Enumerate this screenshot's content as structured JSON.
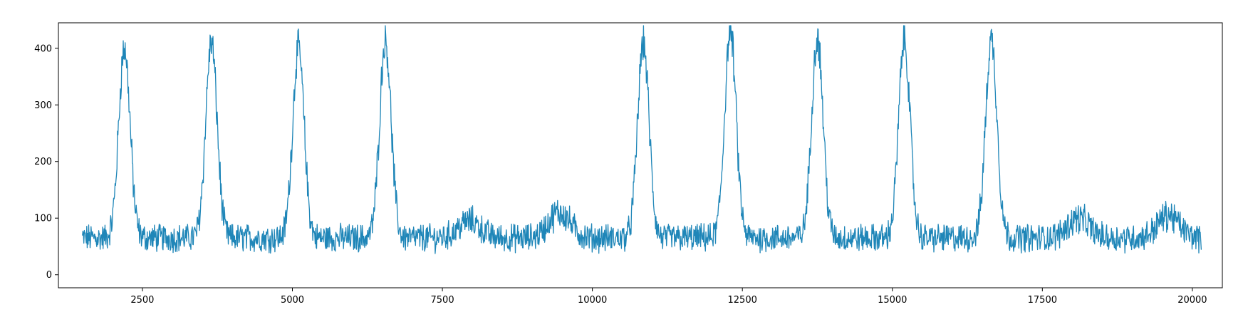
{
  "chart_data": {
    "type": "line",
    "title": "",
    "xlabel": "",
    "ylabel": "",
    "xlim": [
      1100,
      20500
    ],
    "ylim": [
      -23,
      445
    ],
    "xticks": [
      2500,
      5000,
      7500,
      10000,
      12500,
      15000,
      17500,
      20000
    ],
    "xtick_labels": [
      "2500",
      "5000",
      "7500",
      "10000",
      "12500",
      "15000",
      "17500",
      "20000"
    ],
    "yticks": [
      0,
      100,
      200,
      300,
      400
    ],
    "ytick_labels": [
      "0",
      "100",
      "200",
      "300",
      "400"
    ],
    "grid": false,
    "legend": "none",
    "series": [
      {
        "color": "#1f86b8",
        "x_start": 1500,
        "x_end": 20150,
        "baseline": 65,
        "noise_amplitude": 28,
        "peaks": [
          {
            "x": 2200,
            "height": 400
          },
          {
            "x": 3650,
            "height": 410
          },
          {
            "x": 5100,
            "height": 400
          },
          {
            "x": 6550,
            "height": 415
          },
          {
            "x": 10850,
            "height": 410
          },
          {
            "x": 12300,
            "height": 430
          },
          {
            "x": 13750,
            "height": 420
          },
          {
            "x": 15200,
            "height": 415
          },
          {
            "x": 16650,
            "height": 415
          }
        ],
        "bumps": [
          {
            "x": 7950,
            "height": 95
          },
          {
            "x": 9450,
            "height": 110
          },
          {
            "x": 18100,
            "height": 100
          },
          {
            "x": 19600,
            "height": 105
          }
        ]
      }
    ]
  }
}
